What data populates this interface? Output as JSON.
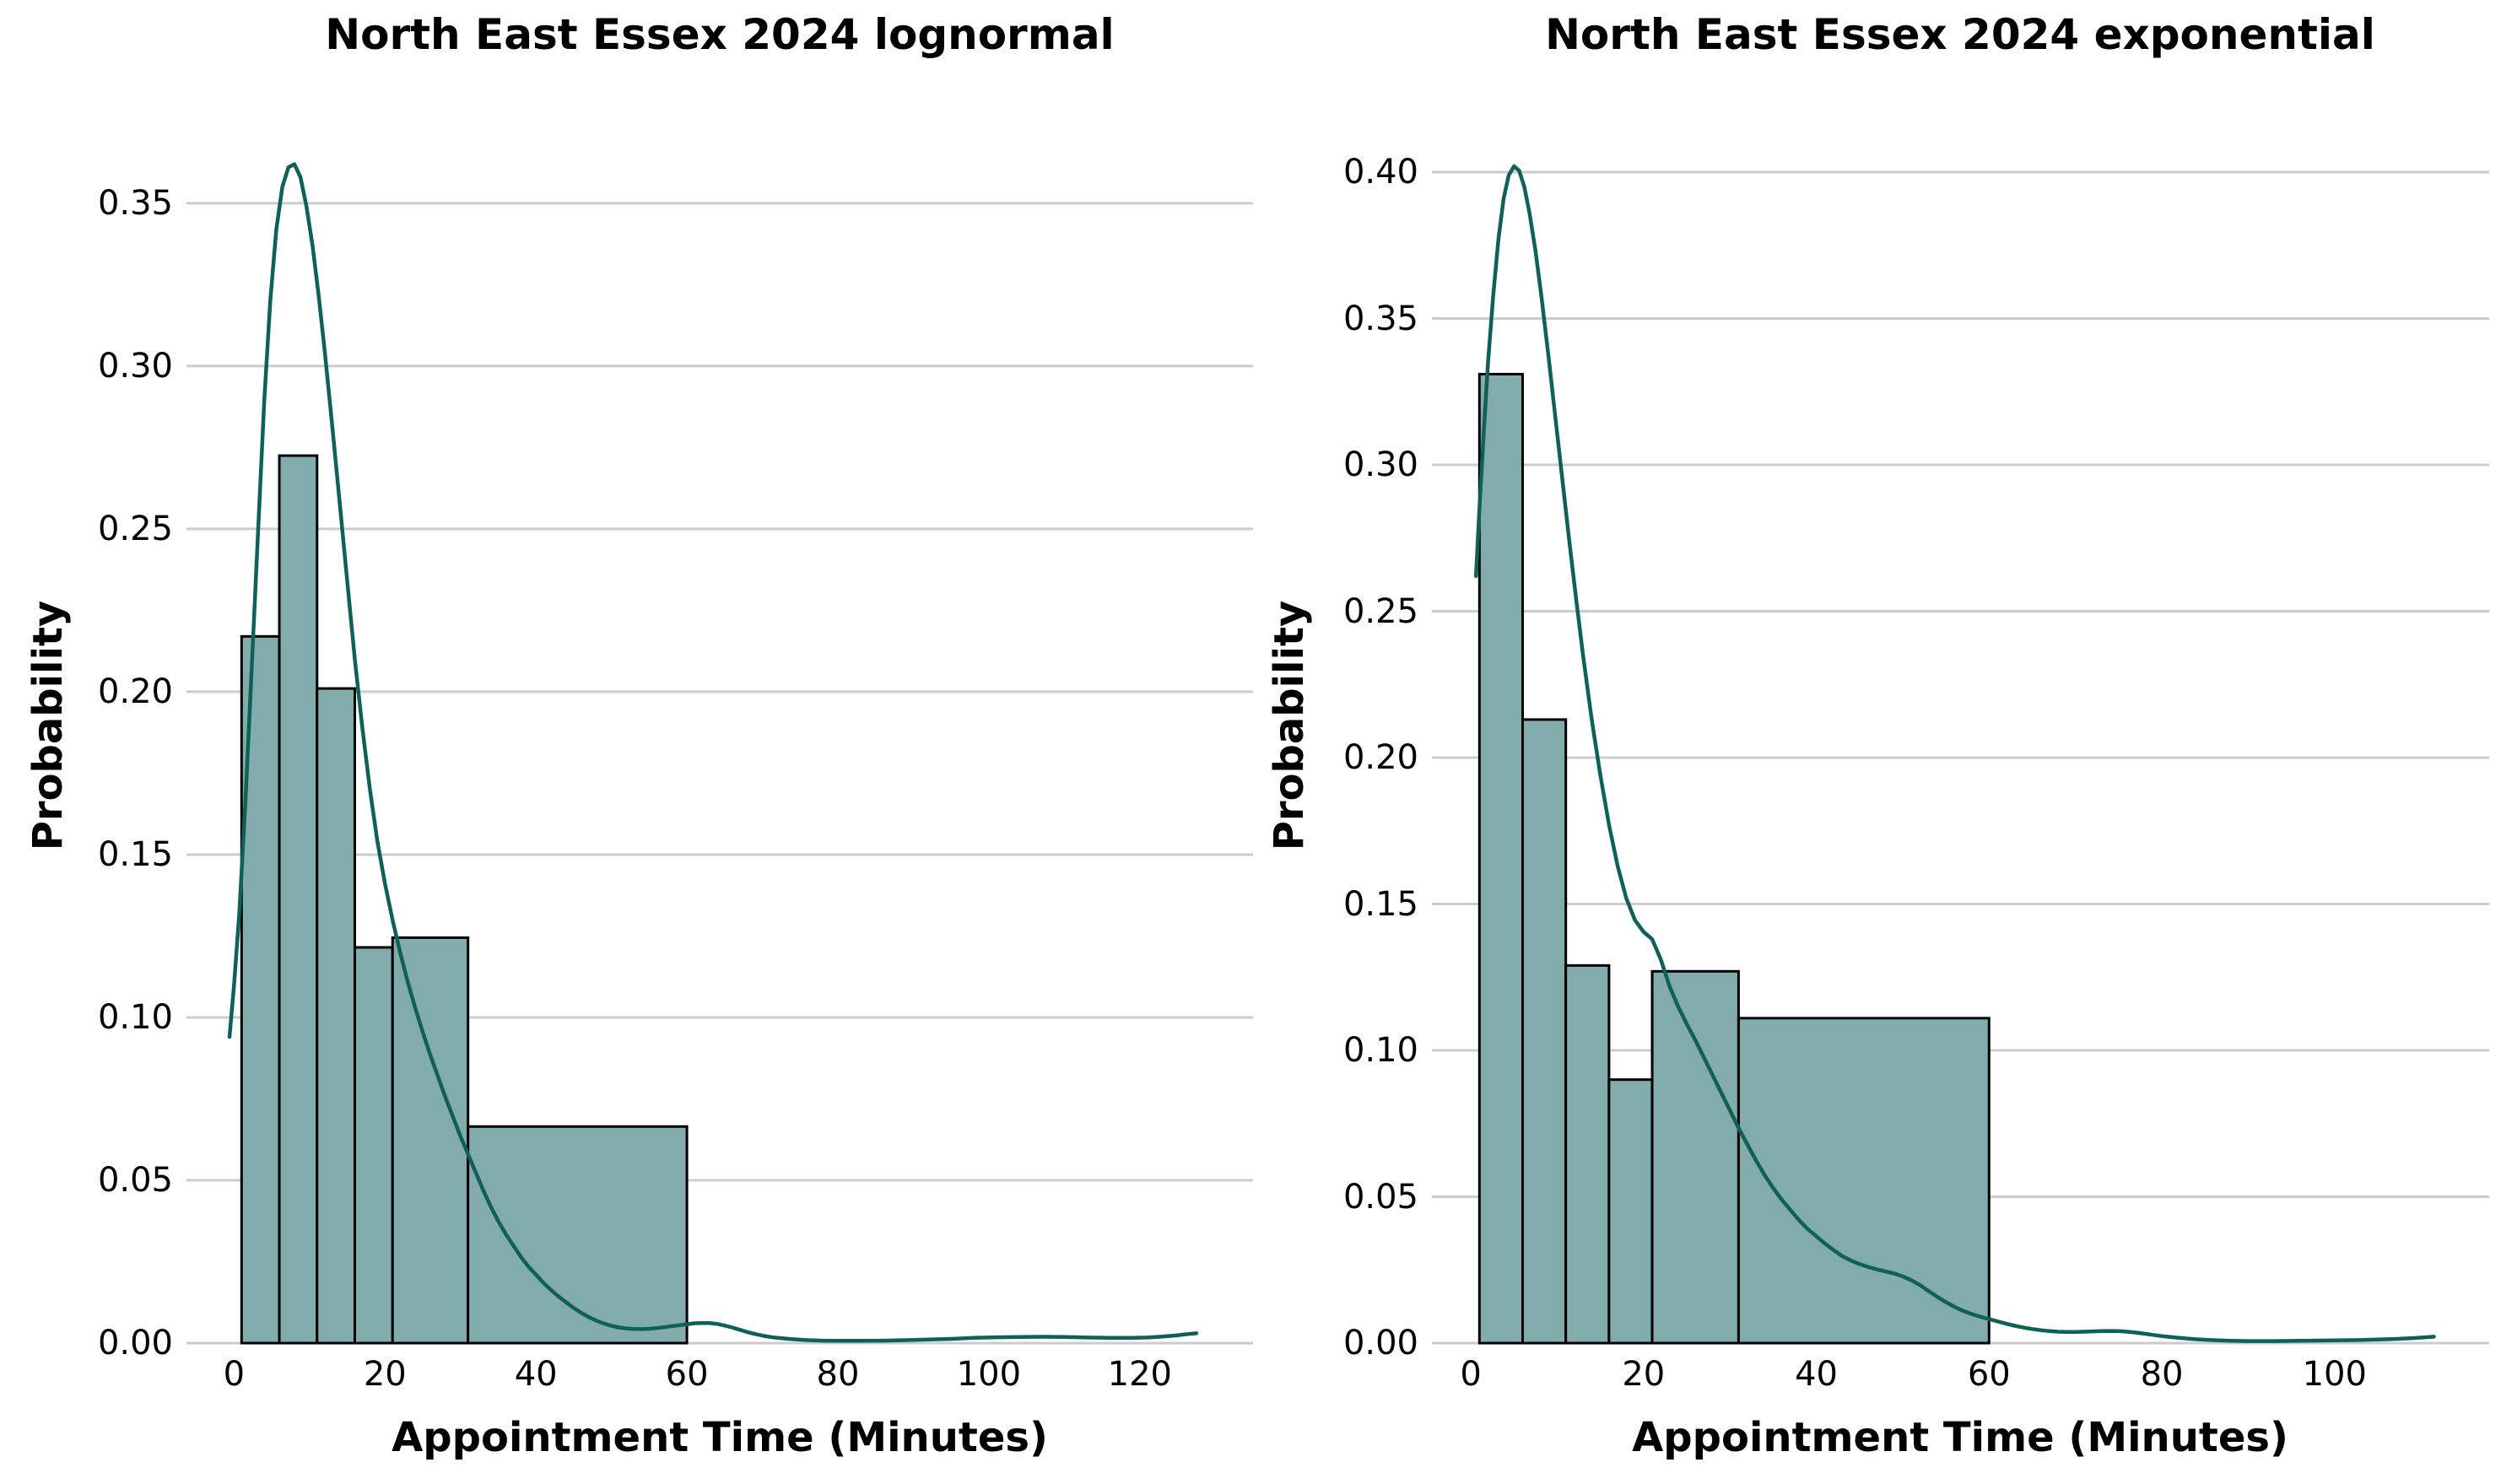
{
  "figure": {
    "background": "#ffffff",
    "text_color": "#000000"
  },
  "chart_data": [
    {
      "type": "histogram-kde",
      "title": "North East Essex 2024 lognormal",
      "xlabel": "Appointment Time (Minutes)",
      "ylabel": "Probability",
      "xlim": [
        -6.3,
        135.0
      ],
      "ylim": [
        0,
        0.3795
      ],
      "grid": true,
      "legend_position": "none",
      "xticks": [
        0,
        20,
        40,
        60,
        80,
        100,
        120
      ],
      "xtick_labels": [
        "0",
        "20",
        "40",
        "60",
        "80",
        "100",
        "120"
      ],
      "ytick_values": [
        0.0,
        0.05,
        0.1,
        0.15,
        0.2,
        0.25,
        0.3,
        0.35
      ],
      "ytick_labels": [
        "0.00",
        "0.05",
        "0.10",
        "0.15",
        "0.20",
        "0.25",
        "0.30",
        "0.35"
      ],
      "bin_edges": [
        1,
        6,
        11,
        16,
        21,
        31,
        60
      ],
      "bar_values": [
        0.217,
        0.2725,
        0.201,
        0.1215,
        0.1245,
        0.0665
      ],
      "kde_points": [
        [
          -0.6,
          0.094
        ],
        [
          0,
          0.11
        ],
        [
          0.7,
          0.132
        ],
        [
          1.5,
          0.166
        ],
        [
          2.3,
          0.205
        ],
        [
          3.2,
          0.25
        ],
        [
          4.0,
          0.289
        ],
        [
          4.8,
          0.32
        ],
        [
          5.6,
          0.342
        ],
        [
          6.4,
          0.355
        ],
        [
          7.2,
          0.361
        ],
        [
          8.0,
          0.362
        ],
        [
          8.8,
          0.358
        ],
        [
          9.6,
          0.349
        ],
        [
          10.4,
          0.337
        ],
        [
          11.2,
          0.322
        ],
        [
          12,
          0.305
        ],
        [
          13,
          0.282
        ],
        [
          14,
          0.258
        ],
        [
          15,
          0.234
        ],
        [
          16,
          0.21
        ],
        [
          17,
          0.189
        ],
        [
          18,
          0.17
        ],
        [
          19,
          0.154
        ],
        [
          20,
          0.141
        ],
        [
          21,
          0.13
        ],
        [
          22,
          0.12
        ],
        [
          23,
          0.111
        ],
        [
          24,
          0.103
        ],
        [
          25,
          0.0955
        ],
        [
          26,
          0.0885
        ],
        [
          27,
          0.082
        ],
        [
          28,
          0.0755
        ],
        [
          29,
          0.0695
        ],
        [
          30,
          0.0635
        ],
        [
          31,
          0.058
        ],
        [
          32,
          0.0525
        ],
        [
          33,
          0.047
        ],
        [
          34,
          0.042
        ],
        [
          35,
          0.0375
        ],
        [
          36,
          0.0335
        ],
        [
          37,
          0.03
        ],
        [
          38,
          0.0265
        ],
        [
          39,
          0.0235
        ],
        [
          40,
          0.021
        ],
        [
          41,
          0.0185
        ],
        [
          42,
          0.0163
        ],
        [
          43,
          0.0143
        ],
        [
          44,
          0.0125
        ],
        [
          45,
          0.0108
        ],
        [
          46,
          0.0093
        ],
        [
          47,
          0.008
        ],
        [
          48,
          0.0069
        ],
        [
          49,
          0.006
        ],
        [
          50,
          0.0053
        ],
        [
          51,
          0.0048
        ],
        [
          52,
          0.0045
        ],
        [
          53,
          0.00435
        ],
        [
          54,
          0.0043
        ],
        [
          55,
          0.0044
        ],
        [
          56,
          0.0046
        ],
        [
          57,
          0.0049
        ],
        [
          58,
          0.0052
        ],
        [
          59,
          0.0055
        ],
        [
          60,
          0.0058
        ],
        [
          61,
          0.0061
        ],
        [
          62,
          0.0062
        ],
        [
          63,
          0.00615
        ],
        [
          64,
          0.0059
        ],
        [
          65,
          0.0054
        ],
        [
          66,
          0.0048
        ],
        [
          67,
          0.0041
        ],
        [
          68,
          0.0034
        ],
        [
          69,
          0.0028
        ],
        [
          70,
          0.0023
        ],
        [
          71,
          0.0019
        ],
        [
          72,
          0.0016
        ],
        [
          74,
          0.0012
        ],
        [
          76,
          0.0009
        ],
        [
          78,
          0.00075
        ],
        [
          80,
          0.0007
        ],
        [
          83,
          0.0007
        ],
        [
          86,
          0.00075
        ],
        [
          89,
          0.0009
        ],
        [
          92,
          0.0011
        ],
        [
          95,
          0.0013
        ],
        [
          98,
          0.0016
        ],
        [
          101,
          0.0018
        ],
        [
          104,
          0.0019
        ],
        [
          107,
          0.00195
        ],
        [
          110,
          0.0019
        ],
        [
          113,
          0.0017
        ],
        [
          116,
          0.0016
        ],
        [
          119,
          0.0016
        ],
        [
          121,
          0.0017
        ],
        [
          123,
          0.002
        ],
        [
          125,
          0.0024
        ],
        [
          126.5,
          0.0028
        ],
        [
          127.5,
          0.003
        ]
      ],
      "colors": {
        "bar_fill": "#82acab",
        "bar_edge": "#000000",
        "kde_line": "#0f6057",
        "grid": "#cccccc"
      }
    },
    {
      "type": "histogram-kde",
      "title": "North East Essex 2024 exponential",
      "xlabel": "Appointment Time (Minutes)",
      "ylabel": "Probability",
      "xlim": [
        -4.5,
        117.9
      ],
      "ylim": [
        0,
        0.4222
      ],
      "grid": true,
      "legend_position": "none",
      "xticks": [
        0,
        20,
        40,
        60,
        80,
        100
      ],
      "xtick_labels": [
        "0",
        "20",
        "40",
        "60",
        "80",
        "100"
      ],
      "ytick_values": [
        0.0,
        0.05,
        0.1,
        0.15,
        0.2,
        0.25,
        0.3,
        0.35,
        0.4
      ],
      "ytick_labels": [
        "0.00",
        "0.05",
        "0.10",
        "0.15",
        "0.20",
        "0.25",
        "0.30",
        "0.35",
        "0.40"
      ],
      "bin_edges": [
        1,
        6,
        11,
        16,
        21,
        31,
        60
      ],
      "bar_values": [
        0.331,
        0.213,
        0.129,
        0.09,
        0.127,
        0.111
      ],
      "kde_points": [
        [
          0.6,
          0.262
        ],
        [
          1.0,
          0.285
        ],
        [
          1.5,
          0.311
        ],
        [
          2.0,
          0.335
        ],
        [
          2.6,
          0.358
        ],
        [
          3.2,
          0.377
        ],
        [
          3.8,
          0.391
        ],
        [
          4.4,
          0.399
        ],
        [
          5.0,
          0.402
        ],
        [
          5.6,
          0.4005
        ],
        [
          6.2,
          0.395
        ],
        [
          6.8,
          0.386
        ],
        [
          7.5,
          0.373
        ],
        [
          8.2,
          0.357
        ],
        [
          9.0,
          0.337
        ],
        [
          9.8,
          0.316
        ],
        [
          10.6,
          0.295
        ],
        [
          11.4,
          0.274
        ],
        [
          12.2,
          0.254
        ],
        [
          13.0,
          0.235
        ],
        [
          14,
          0.213
        ],
        [
          15,
          0.194
        ],
        [
          16,
          0.177
        ],
        [
          17,
          0.163
        ],
        [
          18,
          0.152
        ],
        [
          19,
          0.1445
        ],
        [
          20,
          0.1405
        ],
        [
          21,
          0.138
        ],
        [
          22,
          0.131
        ],
        [
          23,
          0.122
        ],
        [
          24,
          0.115
        ],
        [
          25,
          0.109
        ],
        [
          26,
          0.1035
        ],
        [
          27,
          0.0975
        ],
        [
          28,
          0.0915
        ],
        [
          29,
          0.0855
        ],
        [
          30,
          0.0795
        ],
        [
          31,
          0.0735
        ],
        [
          32,
          0.068
        ],
        [
          33,
          0.0625
        ],
        [
          34,
          0.0575
        ],
        [
          35,
          0.053
        ],
        [
          36,
          0.049
        ],
        [
          37,
          0.0455
        ],
        [
          38,
          0.042
        ],
        [
          39,
          0.039
        ],
        [
          40,
          0.0365
        ],
        [
          41,
          0.034
        ],
        [
          42,
          0.0318
        ],
        [
          43,
          0.0297
        ],
        [
          44,
          0.0282
        ],
        [
          45,
          0.027
        ],
        [
          46,
          0.026
        ],
        [
          47,
          0.0252
        ],
        [
          48,
          0.0245
        ],
        [
          49,
          0.0238
        ],
        [
          50,
          0.0228
        ],
        [
          51,
          0.0215
        ],
        [
          52,
          0.0198
        ],
        [
          53,
          0.0178
        ],
        [
          54,
          0.0158
        ],
        [
          55,
          0.014
        ],
        [
          56,
          0.0124
        ],
        [
          57,
          0.011
        ],
        [
          58,
          0.0099
        ],
        [
          59,
          0.009
        ],
        [
          60,
          0.0082
        ],
        [
          61,
          0.0074
        ],
        [
          62,
          0.0066
        ],
        [
          63,
          0.0059
        ],
        [
          64,
          0.0053
        ],
        [
          65,
          0.0048
        ],
        [
          66,
          0.0044
        ],
        [
          67,
          0.0041
        ],
        [
          68,
          0.0039
        ],
        [
          69,
          0.0038
        ],
        [
          70,
          0.0038
        ],
        [
          71,
          0.0039
        ],
        [
          72,
          0.004
        ],
        [
          73,
          0.0041
        ],
        [
          74,
          0.00415
        ],
        [
          75,
          0.0041
        ],
        [
          76,
          0.0039
        ],
        [
          77,
          0.0036
        ],
        [
          78,
          0.0032
        ],
        [
          79,
          0.0028
        ],
        [
          80,
          0.0024
        ],
        [
          82,
          0.0018
        ],
        [
          84,
          0.0013
        ],
        [
          86,
          0.001
        ],
        [
          88,
          0.0008
        ],
        [
          90,
          0.0007
        ],
        [
          93,
          0.0007
        ],
        [
          96,
          0.0008
        ],
        [
          99,
          0.0009
        ],
        [
          102,
          0.001
        ],
        [
          105,
          0.0012
        ],
        [
          107,
          0.0014
        ],
        [
          109,
          0.0017
        ],
        [
          110.5,
          0.002
        ],
        [
          111.5,
          0.0022
        ]
      ],
      "colors": {
        "bar_fill": "#82acab",
        "bar_edge": "#000000",
        "kde_line": "#0f6057",
        "grid": "#cccccc"
      }
    }
  ]
}
